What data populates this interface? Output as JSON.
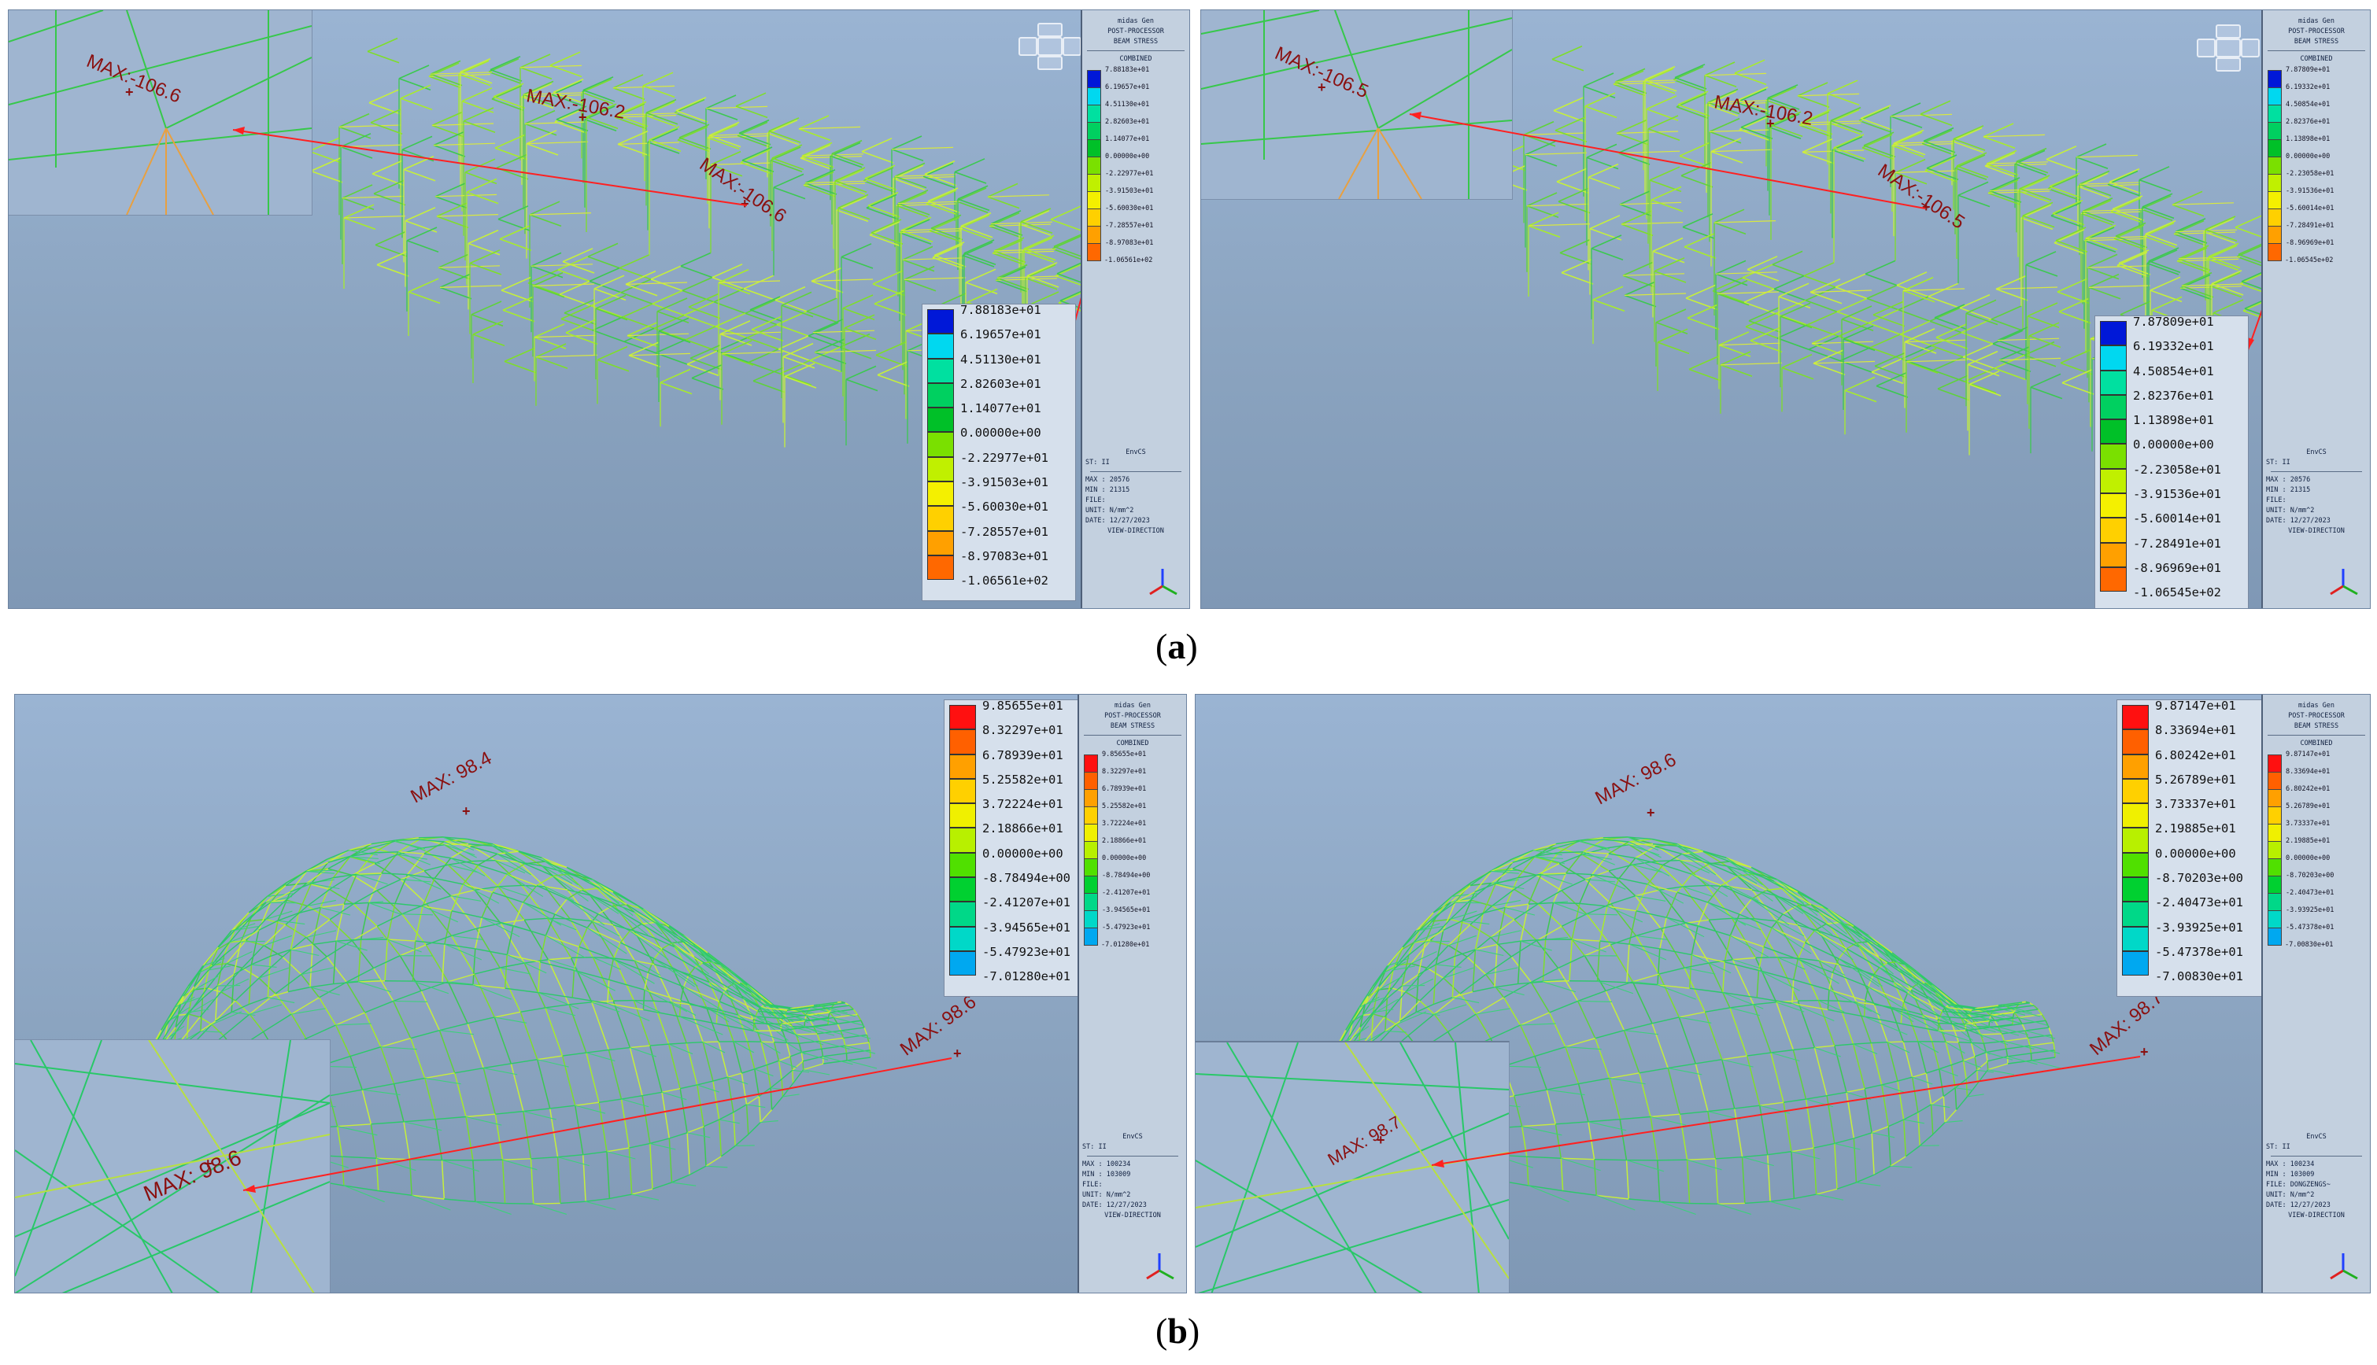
{
  "captions": {
    "a": "a",
    "b": "b"
  },
  "panels": [
    {
      "id": "a-left",
      "max_labels": [
        {
          "text": "MAX:-106.6",
          "where": "inset"
        },
        {
          "text": "MAX:-106.2",
          "where": "ridge"
        },
        {
          "text": "MAX:-106.6",
          "where": "right-wing"
        }
      ],
      "legend_values": [
        "7.88183e+01",
        "6.19657e+01",
        "4.51130e+01",
        "2.82603e+01",
        "1.14077e+01",
        "0.00000e+00",
        "-2.22977e+01",
        "-3.91503e+01",
        "-5.60030e+01",
        "-7.28557e+01",
        "-8.97083e+01",
        "-1.06561e+02"
      ],
      "legend_colors": [
        "#0018d8",
        "#00d8f0",
        "#00e0a0",
        "#00d060",
        "#00c028",
        "#7ae000",
        "#c0f000",
        "#f4f000",
        "#ffd000",
        "#ffa000",
        "#ff6800",
        "#ff2000"
      ]
    },
    {
      "id": "a-right",
      "max_labels": [
        {
          "text": "MAX:-106.5",
          "where": "inset"
        },
        {
          "text": "MAX:-106.2",
          "where": "ridge"
        },
        {
          "text": "MAX:-106.5",
          "where": "right-wing"
        }
      ],
      "legend_values": [
        "7.87809e+01",
        "6.19332e+01",
        "4.50854e+01",
        "2.82376e+01",
        "1.13898e+01",
        "0.00000e+00",
        "-2.23058e+01",
        "-3.91536e+01",
        "-5.60014e+01",
        "-7.28491e+01",
        "-8.96969e+01",
        "-1.06545e+02"
      ],
      "legend_colors": [
        "#0018d8",
        "#00d8f0",
        "#00e0a0",
        "#00d060",
        "#00c028",
        "#7ae000",
        "#c0f000",
        "#f4f000",
        "#ffd000",
        "#ffa000",
        "#ff6800",
        "#ff2000"
      ]
    },
    {
      "id": "b-left",
      "max_labels": [
        {
          "text": "MAX: 98.4",
          "where": "ridge"
        },
        {
          "text": "MAX: 98.6",
          "where": "tip"
        },
        {
          "text": "MAX: 98.6",
          "where": "inset"
        }
      ],
      "legend_values": [
        "9.85655e+01",
        "8.32297e+01",
        "6.78939e+01",
        "5.25582e+01",
        "3.72224e+01",
        "2.18866e+01",
        "0.00000e+00",
        "-8.78494e+00",
        "-2.41207e+01",
        "-3.94565e+01",
        "-5.47923e+01",
        "-7.01280e+01"
      ],
      "legend_colors": [
        "#ff1010",
        "#ff6000",
        "#ffa000",
        "#ffd000",
        "#f0f000",
        "#b8f000",
        "#50e000",
        "#00d030",
        "#00d888",
        "#00d8c8",
        "#00a8f0",
        "#2060f0"
      ]
    },
    {
      "id": "b-right",
      "max_labels": [
        {
          "text": "MAX: 98.6",
          "where": "ridge"
        },
        {
          "text": "MAX: 98.7",
          "where": "tip"
        },
        {
          "text": "MAX: 98.7",
          "where": "inset"
        }
      ],
      "legend_values": [
        "9.87147e+01",
        "8.33694e+01",
        "6.80242e+01",
        "5.26789e+01",
        "3.73337e+01",
        "2.19885e+01",
        "0.00000e+00",
        "-8.70203e+00",
        "-2.40473e+01",
        "-3.93925e+01",
        "-5.47378e+01",
        "-7.00830e+01"
      ],
      "legend_colors": [
        "#ff1010",
        "#ff6000",
        "#ffa000",
        "#ffd000",
        "#f0f000",
        "#b8f000",
        "#50e000",
        "#00d030",
        "#00d888",
        "#00d8c8",
        "#00a8f0",
        "#2060f0"
      ]
    }
  ],
  "sidebar": {
    "app": "midas Gen",
    "mode": "POST-PROCESSOR",
    "result": "BEAM STRESS",
    "component": "COMBINED",
    "loadcase": "EnvCS",
    "st": "ST: II",
    "max_a": "MAX : 20576",
    "min_a": "MIN : 21315",
    "max_b": "MAX : 100234",
    "min_b": "MIN : 103009",
    "file": "FILE:",
    "file_b": "FILE: DONGZENGS~",
    "unit": "UNIT: N/mm^2",
    "date": "DATE: 12/27/2023",
    "view": "VIEW-DIRECTION"
  }
}
